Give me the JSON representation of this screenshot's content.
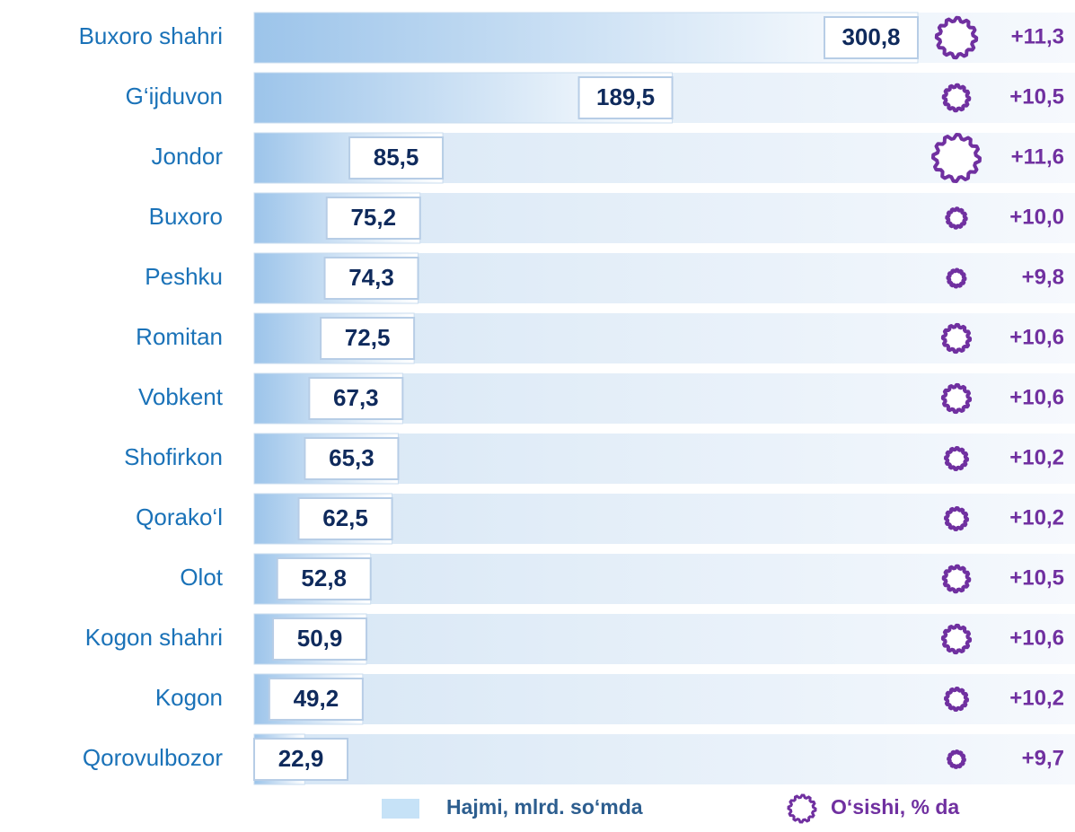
{
  "chart_data": {
    "type": "bar",
    "categories": [
      "Buxoro  shahri",
      "G‘ijduvon",
      "Jondor",
      "Buxoro",
      "Peshku",
      "Romitan",
      "Vobkent",
      "Shofirkon",
      "Qorako‘l",
      "Olot",
      "Kogon shahri",
      "Kogon",
      "Qorovulbozor"
    ],
    "series": [
      {
        "name": "Hajmi, mlrd. so‘mda",
        "color": "#9dc3e6",
        "values": [
          300.8,
          189.5,
          85.5,
          75.2,
          74.3,
          72.5,
          67.3,
          65.3,
          62.5,
          52.8,
          50.9,
          49.2,
          22.9
        ],
        "value_labels": [
          "300,8",
          "189,5",
          "85,5",
          "75,2",
          "74,3",
          "72,5",
          "67,3",
          "65,3",
          "62,5",
          "52,8",
          "50,9",
          "49,2",
          "22,9"
        ]
      },
      {
        "name": "O‘sishi, % da",
        "color": "#7030a0",
        "values": [
          11.3,
          10.5,
          11.6,
          10.0,
          9.8,
          10.6,
          10.6,
          10.2,
          10.2,
          10.5,
          10.6,
          10.2,
          9.7
        ],
        "value_labels": [
          "+11,3",
          "+10,5",
          "+11,6",
          "+10,0",
          "+9,8",
          "+10,6",
          "+10,6",
          "+10,2",
          "+10,2",
          "+10,5",
          "+10,6",
          "+10,2",
          "+9,7"
        ]
      }
    ]
  }
}
